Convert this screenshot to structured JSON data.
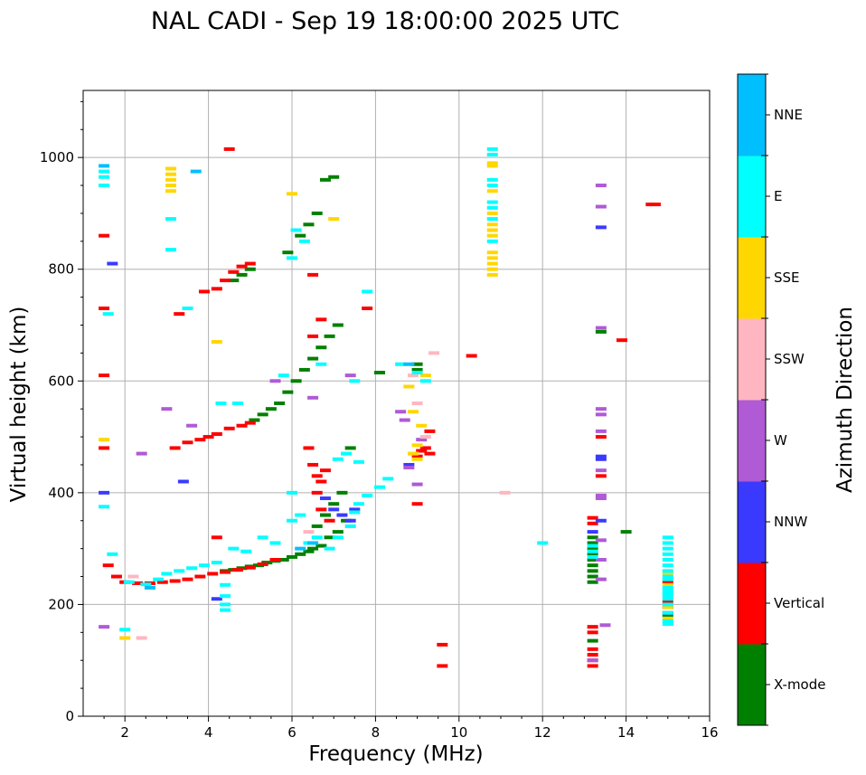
{
  "chart_data": {
    "type": "scatter",
    "title": "NAL CADI - Sep 19 18:00:00 2025 UTC",
    "xlabel": "Frequency (MHz)",
    "ylabel": "Virtual height (km)",
    "xlim": [
      1,
      16
    ],
    "ylim": [
      0,
      1120
    ],
    "xticks": [
      2,
      4,
      6,
      8,
      10,
      12,
      14,
      16
    ],
    "yticks": [
      0,
      200,
      400,
      600,
      800,
      1000
    ],
    "grid": true,
    "colorbar": {
      "label": "Azimuth Direction",
      "categories": [
        "X-mode",
        "Vertical",
        "NNW",
        "W",
        "SSW",
        "SSE",
        "E",
        "NNE"
      ],
      "colors": [
        "#008000",
        "#ff0000",
        "#3a3aff",
        "#b05ad6",
        "#ffb6c1",
        "#ffd700",
        "#00ffff",
        "#00bfff"
      ]
    },
    "series": [
      {
        "name": "X-mode",
        "points": [
          [
            4.4,
            260
          ],
          [
            4.6,
            262
          ],
          [
            4.8,
            265
          ],
          [
            5.0,
            268
          ],
          [
            5.2,
            270
          ],
          [
            5.4,
            275
          ],
          [
            5.6,
            278
          ],
          [
            5.8,
            280
          ],
          [
            6.0,
            285
          ],
          [
            6.2,
            290
          ],
          [
            6.4,
            295
          ],
          [
            6.5,
            300
          ],
          [
            6.7,
            305
          ],
          [
            6.9,
            320
          ],
          [
            7.1,
            330
          ],
          [
            7.3,
            350
          ],
          [
            6.6,
            340
          ],
          [
            6.8,
            360
          ],
          [
            7.0,
            380
          ],
          [
            7.2,
            400
          ],
          [
            7.4,
            480
          ],
          [
            5.1,
            530
          ],
          [
            5.3,
            540
          ],
          [
            5.5,
            550
          ],
          [
            5.7,
            560
          ],
          [
            5.9,
            580
          ],
          [
            6.1,
            600
          ],
          [
            6.3,
            620
          ],
          [
            6.5,
            640
          ],
          [
            6.7,
            660
          ],
          [
            6.9,
            680
          ],
          [
            7.1,
            700
          ],
          [
            4.6,
            780
          ],
          [
            4.8,
            790
          ],
          [
            5.0,
            800
          ],
          [
            5.9,
            830
          ],
          [
            6.2,
            860
          ],
          [
            6.4,
            880
          ],
          [
            6.6,
            900
          ],
          [
            6.8,
            960
          ],
          [
            7.0,
            965
          ],
          [
            8.1,
            615
          ],
          [
            9.0,
            630
          ],
          [
            9.0,
            620
          ],
          [
            13.2,
            240
          ],
          [
            13.2,
            250
          ],
          [
            13.2,
            260
          ],
          [
            13.2,
            270
          ],
          [
            13.2,
            280
          ],
          [
            13.2,
            290
          ],
          [
            13.2,
            300
          ],
          [
            13.2,
            310
          ],
          [
            13.2,
            320
          ],
          [
            13.2,
            135
          ],
          [
            15.0,
            180
          ],
          [
            14.0,
            330
          ],
          [
            13.4,
            688
          ]
        ]
      },
      {
        "name": "Vertical",
        "points": [
          [
            1.6,
            270
          ],
          [
            1.8,
            250
          ],
          [
            2.0,
            240
          ],
          [
            2.3,
            238
          ],
          [
            2.6,
            238
          ],
          [
            2.9,
            240
          ],
          [
            3.2,
            242
          ],
          [
            3.5,
            245
          ],
          [
            3.8,
            250
          ],
          [
            4.1,
            255
          ],
          [
            4.4,
            258
          ],
          [
            4.7,
            262
          ],
          [
            5.0,
            266
          ],
          [
            5.3,
            272
          ],
          [
            5.6,
            280
          ],
          [
            3.2,
            480
          ],
          [
            3.5,
            490
          ],
          [
            3.8,
            495
          ],
          [
            4.0,
            500
          ],
          [
            4.2,
            505
          ],
          [
            4.5,
            515
          ],
          [
            4.8,
            520
          ],
          [
            5.0,
            525
          ],
          [
            3.9,
            760
          ],
          [
            4.2,
            765
          ],
          [
            4.4,
            780
          ],
          [
            4.6,
            795
          ],
          [
            4.8,
            805
          ],
          [
            5.0,
            810
          ],
          [
            6.5,
            450
          ],
          [
            6.6,
            430
          ],
          [
            6.7,
            420
          ],
          [
            6.8,
            440
          ],
          [
            6.6,
            400
          ],
          [
            6.4,
            480
          ],
          [
            6.7,
            370
          ],
          [
            6.9,
            350
          ],
          [
            1.5,
            480
          ],
          [
            1.5,
            610
          ],
          [
            1.5,
            860
          ],
          [
            1.5,
            730
          ],
          [
            3.3,
            720
          ],
          [
            4.2,
            320
          ],
          [
            4.5,
            1015
          ],
          [
            6.5,
            790
          ],
          [
            6.5,
            680
          ],
          [
            6.7,
            710
          ],
          [
            9.0,
            465
          ],
          [
            9.1,
            475
          ],
          [
            9.2,
            480
          ],
          [
            9.3,
            510
          ],
          [
            9.3,
            470
          ],
          [
            9.0,
            380
          ],
          [
            9.6,
            90
          ],
          [
            9.6,
            128
          ],
          [
            10.3,
            645
          ],
          [
            7.8,
            730
          ],
          [
            13.2,
            90
          ],
          [
            13.2,
            100
          ],
          [
            13.2,
            110
          ],
          [
            13.2,
            120
          ],
          [
            13.2,
            150
          ],
          [
            13.2,
            160
          ],
          [
            13.2,
            355
          ],
          [
            13.2,
            345
          ],
          [
            13.4,
            500
          ],
          [
            13.4,
            430
          ],
          [
            15.0,
            195
          ],
          [
            15.0,
            205
          ],
          [
            15.0,
            240
          ],
          [
            14.6,
            916
          ],
          [
            14.7,
            916
          ],
          [
            13.9,
            673
          ]
        ]
      },
      {
        "name": "NNW",
        "points": [
          [
            1.7,
            810
          ],
          [
            1.5,
            400
          ],
          [
            3.4,
            420
          ],
          [
            4.2,
            210
          ],
          [
            6.8,
            390
          ],
          [
            7.0,
            370
          ],
          [
            7.2,
            360
          ],
          [
            7.4,
            350
          ],
          [
            7.5,
            370
          ],
          [
            8.8,
            450
          ],
          [
            13.4,
            875
          ],
          [
            13.4,
            350
          ],
          [
            13.4,
            460
          ],
          [
            13.4,
            465
          ],
          [
            13.2,
            330
          ],
          [
            15.0,
            185
          ]
        ]
      },
      {
        "name": "W",
        "points": [
          [
            1.5,
            160
          ],
          [
            2.4,
            470
          ],
          [
            3.0,
            550
          ],
          [
            3.6,
            520
          ],
          [
            5.6,
            600
          ],
          [
            6.5,
            570
          ],
          [
            7.4,
            610
          ],
          [
            8.6,
            545
          ],
          [
            8.7,
            530
          ],
          [
            8.8,
            445
          ],
          [
            9.0,
            415
          ],
          [
            9.1,
            495
          ],
          [
            13.4,
            950
          ],
          [
            13.4,
            912
          ],
          [
            13.4,
            695
          ],
          [
            13.4,
            550
          ],
          [
            13.4,
            540
          ],
          [
            13.4,
            510
          ],
          [
            13.4,
            440
          ],
          [
            13.4,
            395
          ],
          [
            13.4,
            390
          ],
          [
            13.4,
            315
          ],
          [
            13.4,
            280
          ],
          [
            13.4,
            245
          ],
          [
            13.5,
            163
          ],
          [
            13.2,
            100
          ]
        ]
      },
      {
        "name": "SSW",
        "points": [
          [
            2.4,
            140
          ],
          [
            2.2,
            250
          ],
          [
            2.6,
            230
          ],
          [
            6.4,
            330
          ],
          [
            8.9,
            610
          ],
          [
            9.0,
            560
          ],
          [
            11.1,
            400
          ],
          [
            9.2,
            500
          ],
          [
            9.4,
            650
          ]
        ]
      },
      {
        "name": "SSE",
        "points": [
          [
            1.5,
            495
          ],
          [
            3.1,
            980
          ],
          [
            3.1,
            970
          ],
          [
            3.1,
            960
          ],
          [
            3.1,
            950
          ],
          [
            3.1,
            940
          ],
          [
            2.0,
            140
          ],
          [
            4.2,
            670
          ],
          [
            6.0,
            935
          ],
          [
            7.0,
            890
          ],
          [
            8.8,
            590
          ],
          [
            8.9,
            545
          ],
          [
            8.9,
            470
          ],
          [
            9.0,
            485
          ],
          [
            9.0,
            460
          ],
          [
            9.1,
            520
          ],
          [
            9.2,
            610
          ],
          [
            10.8,
            790
          ],
          [
            10.8,
            800
          ],
          [
            10.8,
            810
          ],
          [
            10.8,
            820
          ],
          [
            10.8,
            830
          ],
          [
            10.8,
            860
          ],
          [
            10.8,
            870
          ],
          [
            10.8,
            880
          ],
          [
            10.8,
            900
          ],
          [
            10.8,
            940
          ],
          [
            10.8,
            990
          ],
          [
            10.8,
            985
          ],
          [
            15.0,
            175
          ],
          [
            15.0,
            195
          ],
          [
            15.0,
            235
          ],
          [
            15.0,
            255
          ]
        ]
      },
      {
        "name": "E",
        "points": [
          [
            1.5,
            975
          ],
          [
            1.5,
            965
          ],
          [
            1.5,
            950
          ],
          [
            1.6,
            720
          ],
          [
            1.5,
            375
          ],
          [
            1.7,
            290
          ],
          [
            2.0,
            155
          ],
          [
            2.1,
            240
          ],
          [
            2.5,
            236
          ],
          [
            2.8,
            245
          ],
          [
            3.0,
            255
          ],
          [
            3.3,
            260
          ],
          [
            3.6,
            265
          ],
          [
            3.9,
            270
          ],
          [
            4.2,
            275
          ],
          [
            4.4,
            200
          ],
          [
            4.4,
            190
          ],
          [
            4.4,
            215
          ],
          [
            4.4,
            235
          ],
          [
            4.6,
            300
          ],
          [
            4.9,
            295
          ],
          [
            5.3,
            320
          ],
          [
            5.6,
            310
          ],
          [
            6.0,
            350
          ],
          [
            6.2,
            360
          ],
          [
            6.4,
            310
          ],
          [
            6.6,
            320
          ],
          [
            6.9,
            300
          ],
          [
            7.1,
            320
          ],
          [
            7.4,
            340
          ],
          [
            7.5,
            365
          ],
          [
            7.6,
            380
          ],
          [
            7.8,
            395
          ],
          [
            8.1,
            410
          ],
          [
            8.3,
            425
          ],
          [
            3.1,
            890
          ],
          [
            3.1,
            835
          ],
          [
            3.5,
            730
          ],
          [
            4.3,
            560
          ],
          [
            4.7,
            560
          ],
          [
            5.8,
            610
          ],
          [
            6.0,
            400
          ],
          [
            6.1,
            870
          ],
          [
            6.0,
            820
          ],
          [
            6.3,
            850
          ],
          [
            6.7,
            630
          ],
          [
            7.1,
            460
          ],
          [
            7.3,
            470
          ],
          [
            7.6,
            455
          ],
          [
            7.8,
            760
          ],
          [
            7.5,
            600
          ],
          [
            8.6,
            630
          ],
          [
            9.0,
            615
          ],
          [
            9.2,
            600
          ],
          [
            12.0,
            310
          ],
          [
            10.8,
            1015
          ],
          [
            10.8,
            1005
          ],
          [
            10.8,
            960
          ],
          [
            10.8,
            950
          ],
          [
            10.8,
            920
          ],
          [
            10.8,
            910
          ],
          [
            10.8,
            890
          ],
          [
            10.8,
            850
          ],
          [
            13.2,
            285
          ],
          [
            13.2,
            295
          ],
          [
            13.2,
            305
          ],
          [
            15.0,
            165
          ],
          [
            15.0,
            170
          ],
          [
            15.0,
            185
          ],
          [
            15.0,
            200
          ],
          [
            15.0,
            210
          ],
          [
            15.0,
            215
          ],
          [
            15.0,
            220
          ],
          [
            15.0,
            225
          ],
          [
            15.0,
            230
          ],
          [
            15.0,
            245
          ],
          [
            15.0,
            250
          ],
          [
            15.0,
            260
          ],
          [
            15.0,
            270
          ],
          [
            15.0,
            280
          ],
          [
            15.0,
            290
          ],
          [
            15.0,
            300
          ],
          [
            15.0,
            310
          ],
          [
            15.0,
            320
          ]
        ]
      },
      {
        "name": "NNE",
        "points": [
          [
            1.5,
            985
          ],
          [
            2.6,
            230
          ],
          [
            3.7,
            975
          ],
          [
            6.2,
            300
          ],
          [
            6.5,
            310
          ],
          [
            8.8,
            630
          ]
        ]
      }
    ]
  }
}
